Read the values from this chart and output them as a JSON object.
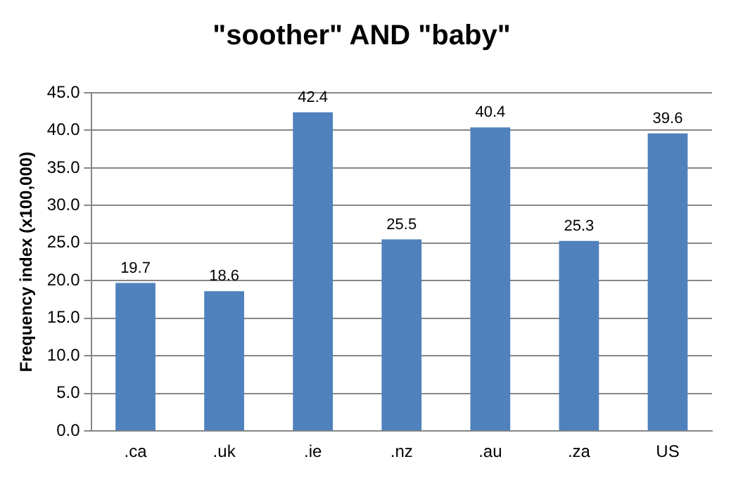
{
  "chart_data": {
    "type": "bar",
    "title": "\"soother\" AND \"baby\"",
    "ylabel": "Frequency index (x100,000)",
    "categories": [
      ".ca",
      ".uk",
      ".ie",
      ".nz",
      ".au",
      ".za",
      "US"
    ],
    "values": [
      19.7,
      18.6,
      42.4,
      25.5,
      40.4,
      25.3,
      39.6
    ],
    "color": "#4f81bd",
    "ylim": [
      0,
      45
    ],
    "yticks": [
      {
        "value": 0,
        "label": "0.0"
      },
      {
        "value": 5,
        "label": "5.0"
      },
      {
        "value": 10,
        "label": "10.0"
      },
      {
        "value": 15,
        "label": "15.0"
      },
      {
        "value": 20,
        "label": "20.0"
      },
      {
        "value": 25,
        "label": "25.0"
      },
      {
        "value": 30,
        "label": "30.0"
      },
      {
        "value": 35,
        "label": "35.0"
      },
      {
        "value": 40,
        "label": "40.0"
      },
      {
        "value": 45,
        "label": "45.0"
      }
    ],
    "grid": "y",
    "data_labels": true,
    "legend": false
  }
}
